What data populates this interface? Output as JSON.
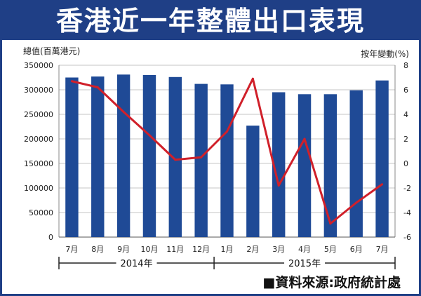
{
  "title": "香港近一年整體出口表現",
  "source": "■資料來源:政府統計處",
  "chart_data": {
    "type": "bar+line",
    "title": "香港近一年整體出口表現",
    "ylabel": "總值(百萬港元)",
    "y2label": "按年變動(%)",
    "categories": [
      "7月",
      "8月",
      "9月",
      "10月",
      "11月",
      "12月",
      "1月",
      "2月",
      "3月",
      "4月",
      "5月",
      "6月",
      "7月"
    ],
    "year_groups": [
      {
        "label": "2014年",
        "start": 0,
        "end": 5
      },
      {
        "label": "2015年",
        "start": 6,
        "end": 12
      }
    ],
    "series": [
      {
        "name": "總值(百萬港元)",
        "type": "bar",
        "axis": "left",
        "values": [
          325000,
          327000,
          331000,
          330000,
          326000,
          312000,
          311000,
          227000,
          295000,
          291000,
          291000,
          299000,
          319000
        ]
      },
      {
        "name": "按年變動(%)",
        "type": "line",
        "axis": "right",
        "values": [
          6.7,
          6.2,
          4.2,
          2.3,
          0.3,
          0.5,
          2.6,
          6.9,
          -1.8,
          2.0,
          -4.9,
          -3.2,
          -1.7
        ]
      }
    ],
    "ylim": [
      0,
      350000
    ],
    "yticks": [
      "350000",
      "300000",
      "250000",
      "200000",
      "150000",
      "100000",
      "50000",
      "0"
    ],
    "y2lim": [
      -6,
      8
    ],
    "y2ticks": [
      "8",
      "6",
      "4",
      "2",
      "0",
      "-2",
      "-4",
      "-6"
    ],
    "grid": true,
    "colors": {
      "bar": "#1f4a96",
      "line": "#d0202a",
      "grid": "#c4c4c4",
      "title_bg": "#1f3f86"
    }
  }
}
